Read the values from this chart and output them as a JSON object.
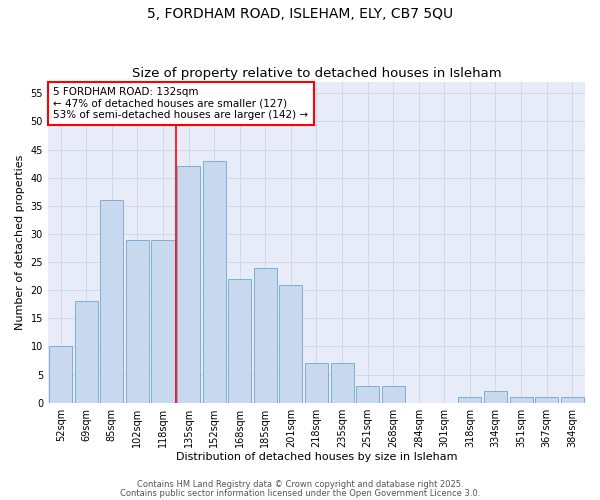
{
  "title_line1": "5, FORDHAM ROAD, ISLEHAM, ELY, CB7 5QU",
  "title_line2": "Size of property relative to detached houses in Isleham",
  "categories": [
    "52sqm",
    "69sqm",
    "85sqm",
    "102sqm",
    "118sqm",
    "135sqm",
    "152sqm",
    "168sqm",
    "185sqm",
    "201sqm",
    "218sqm",
    "235sqm",
    "251sqm",
    "268sqm",
    "284sqm",
    "301sqm",
    "318sqm",
    "334sqm",
    "351sqm",
    "367sqm",
    "384sqm"
  ],
  "values": [
    10,
    18,
    36,
    29,
    29,
    42,
    43,
    22,
    24,
    21,
    7,
    7,
    3,
    3,
    0,
    0,
    1,
    2,
    1,
    1,
    1
  ],
  "bar_color": "#c8d8ee",
  "bar_edge_color": "#7aafd4",
  "bar_edge_width": 0.7,
  "red_line_x": 4.5,
  "annotation_text": "5 FORDHAM ROAD: 132sqm\n← 47% of detached houses are smaller (127)\n53% of semi-detached houses are larger (142) →",
  "annotation_box_color": "white",
  "annotation_box_edge_color": "red",
  "xlabel": "Distribution of detached houses by size in Isleham",
  "ylabel": "Number of detached properties",
  "ylim": [
    0,
    57
  ],
  "yticks": [
    0,
    5,
    10,
    15,
    20,
    25,
    30,
    35,
    40,
    45,
    50,
    55
  ],
  "grid_color": "#c8d0e8",
  "background_color": "#ffffff",
  "plot_bg_color": "#e8ecf8",
  "footer_line1": "Contains HM Land Registry data © Crown copyright and database right 2025.",
  "footer_line2": "Contains public sector information licensed under the Open Government Licence 3.0.",
  "title_fontsize": 10,
  "subtitle_fontsize": 9.5,
  "axis_label_fontsize": 8,
  "tick_fontsize": 7,
  "annotation_fontsize": 7.5,
  "footer_fontsize": 6
}
